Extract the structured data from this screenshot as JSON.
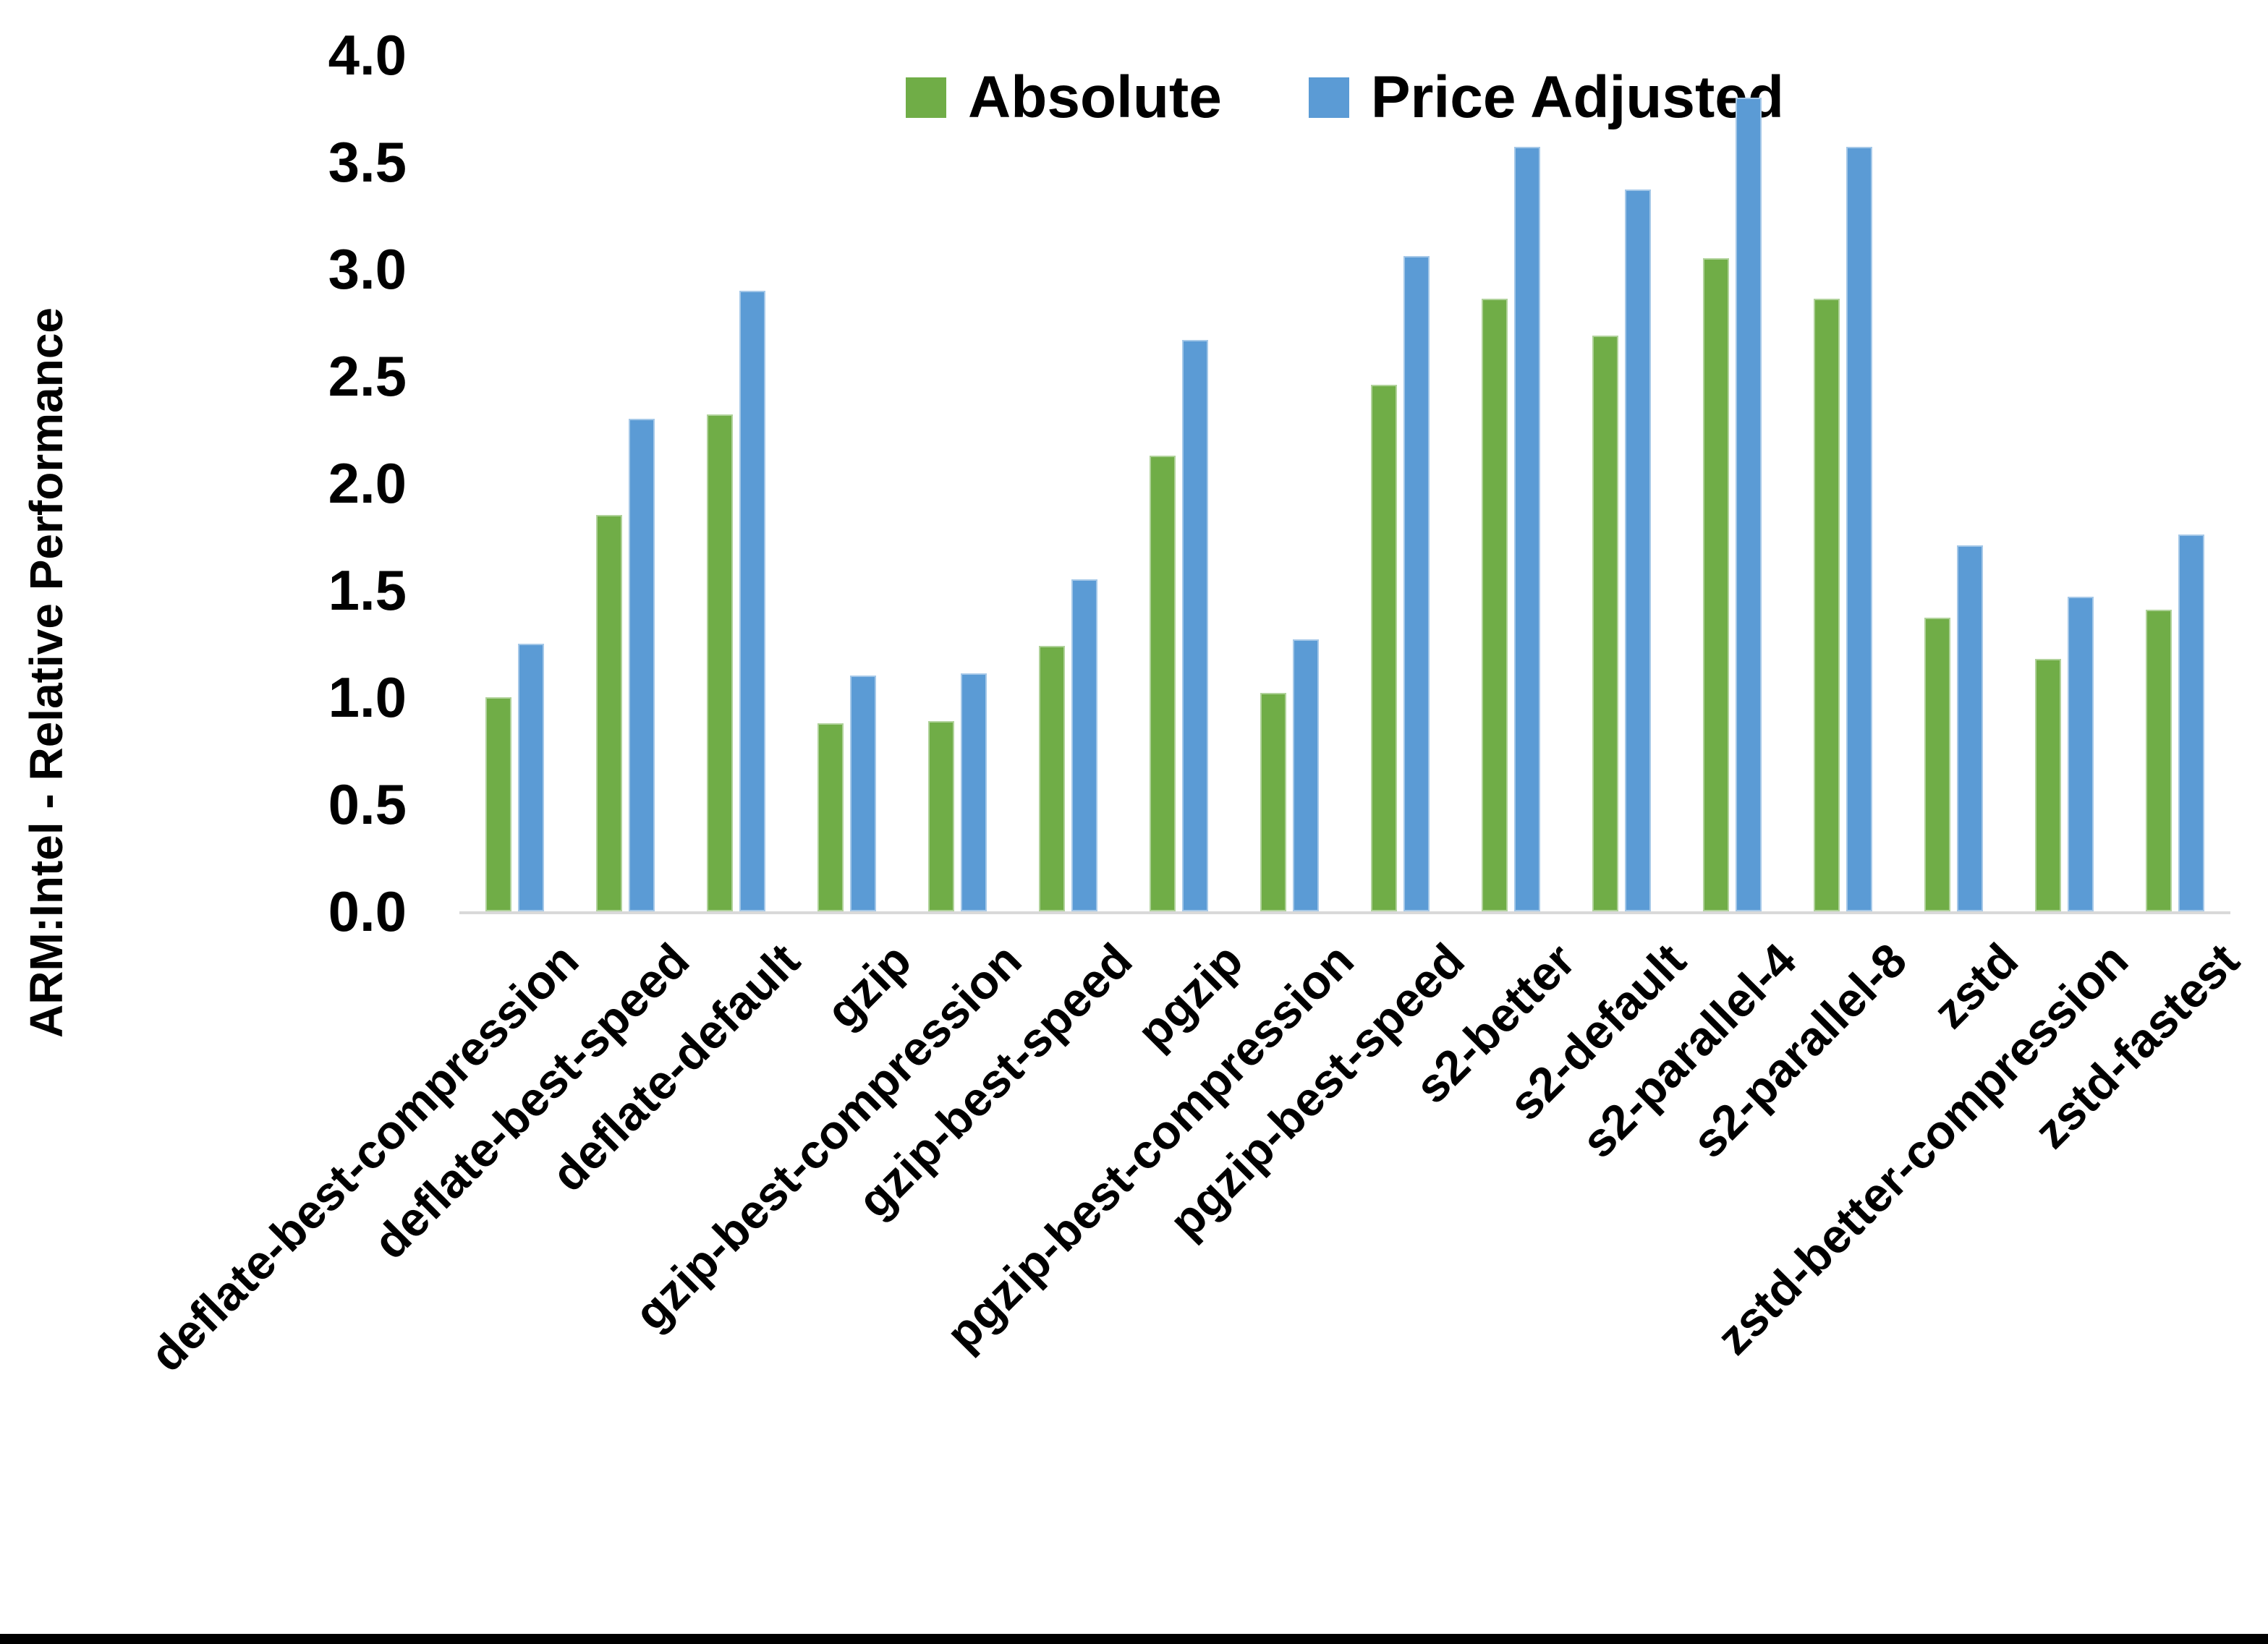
{
  "chart_data": {
    "type": "bar",
    "title": "",
    "ylabel": "ARM:Intel - Relative Performance",
    "xlabel": "",
    "ylim": [
      0.0,
      4.0
    ],
    "ytick_step": 0.5,
    "yticks": [
      "0.0",
      "0.5",
      "1.0",
      "1.5",
      "2.0",
      "2.5",
      "3.0",
      "3.5",
      "4.0"
    ],
    "grid": false,
    "legend_position": "top-center",
    "categories": [
      "deflate-best-compression",
      "deflate-best-speed",
      "deflate-default",
      "gzip",
      "gzip-best-compression",
      "gzip-best-speed",
      "pgzip",
      "pgzip-best-compression",
      "pgzip-best-speed",
      "s2-better",
      "s2-default",
      "s2-parallel-4",
      "s2-parallel-8",
      "zstd",
      "zstd-better-compression",
      "zstd-fastest"
    ],
    "series": [
      {
        "name": "Absolute",
        "color": "#70AD47",
        "values": [
          1.0,
          1.85,
          2.32,
          0.88,
          0.89,
          1.24,
          2.13,
          1.02,
          2.46,
          2.86,
          2.69,
          3.05,
          2.86,
          1.37,
          1.18,
          1.41
        ]
      },
      {
        "name": "Price Adjusted",
        "color": "#5B9BD5",
        "values": [
          1.25,
          2.3,
          2.9,
          1.1,
          1.11,
          1.55,
          2.67,
          1.27,
          3.06,
          3.57,
          3.37,
          3.8,
          3.57,
          1.71,
          1.47,
          1.76
        ]
      }
    ]
  },
  "colors": {
    "background": "#FFFFFF",
    "axis_line": "#D9D9D9",
    "text": "#000000",
    "bottom_border": "#000000"
  }
}
